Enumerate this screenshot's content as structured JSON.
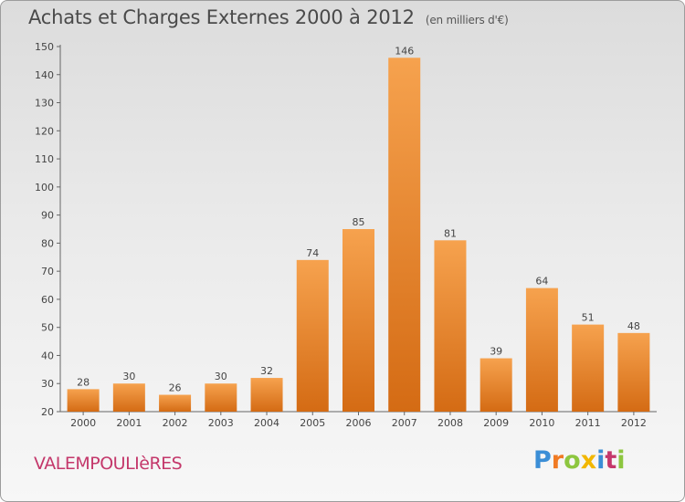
{
  "title": "Achats et Charges Externes 2000 à 2012",
  "unit": "(en milliers d'€)",
  "location": "VALEMPOULIèRES",
  "logo": {
    "p": "P",
    "r": "r",
    "o": "o",
    "x": "x",
    "i": "i",
    "t": "t",
    "i2": "i"
  },
  "colors": {
    "bar_light": "#f6a24e",
    "bar_dark": "#d46b14",
    "title": "#4a4a4a",
    "location": "#c4386b"
  },
  "chart_data": {
    "type": "bar",
    "title": "Achats et Charges Externes 2000 à 2012",
    "subtitle": "(en milliers d'€)",
    "xlabel": "",
    "ylabel": "",
    "categories": [
      "2000",
      "2001",
      "2002",
      "2003",
      "2004",
      "2005",
      "2006",
      "2007",
      "2008",
      "2009",
      "2010",
      "2011",
      "2012"
    ],
    "values": [
      28,
      30,
      26,
      30,
      32,
      74,
      85,
      146,
      81,
      39,
      64,
      51,
      48
    ],
    "ylim": [
      20,
      150
    ],
    "yticks": [
      20,
      30,
      40,
      50,
      60,
      70,
      80,
      90,
      100,
      110,
      120,
      130,
      140,
      150
    ],
    "grid": false,
    "legend": "none"
  }
}
